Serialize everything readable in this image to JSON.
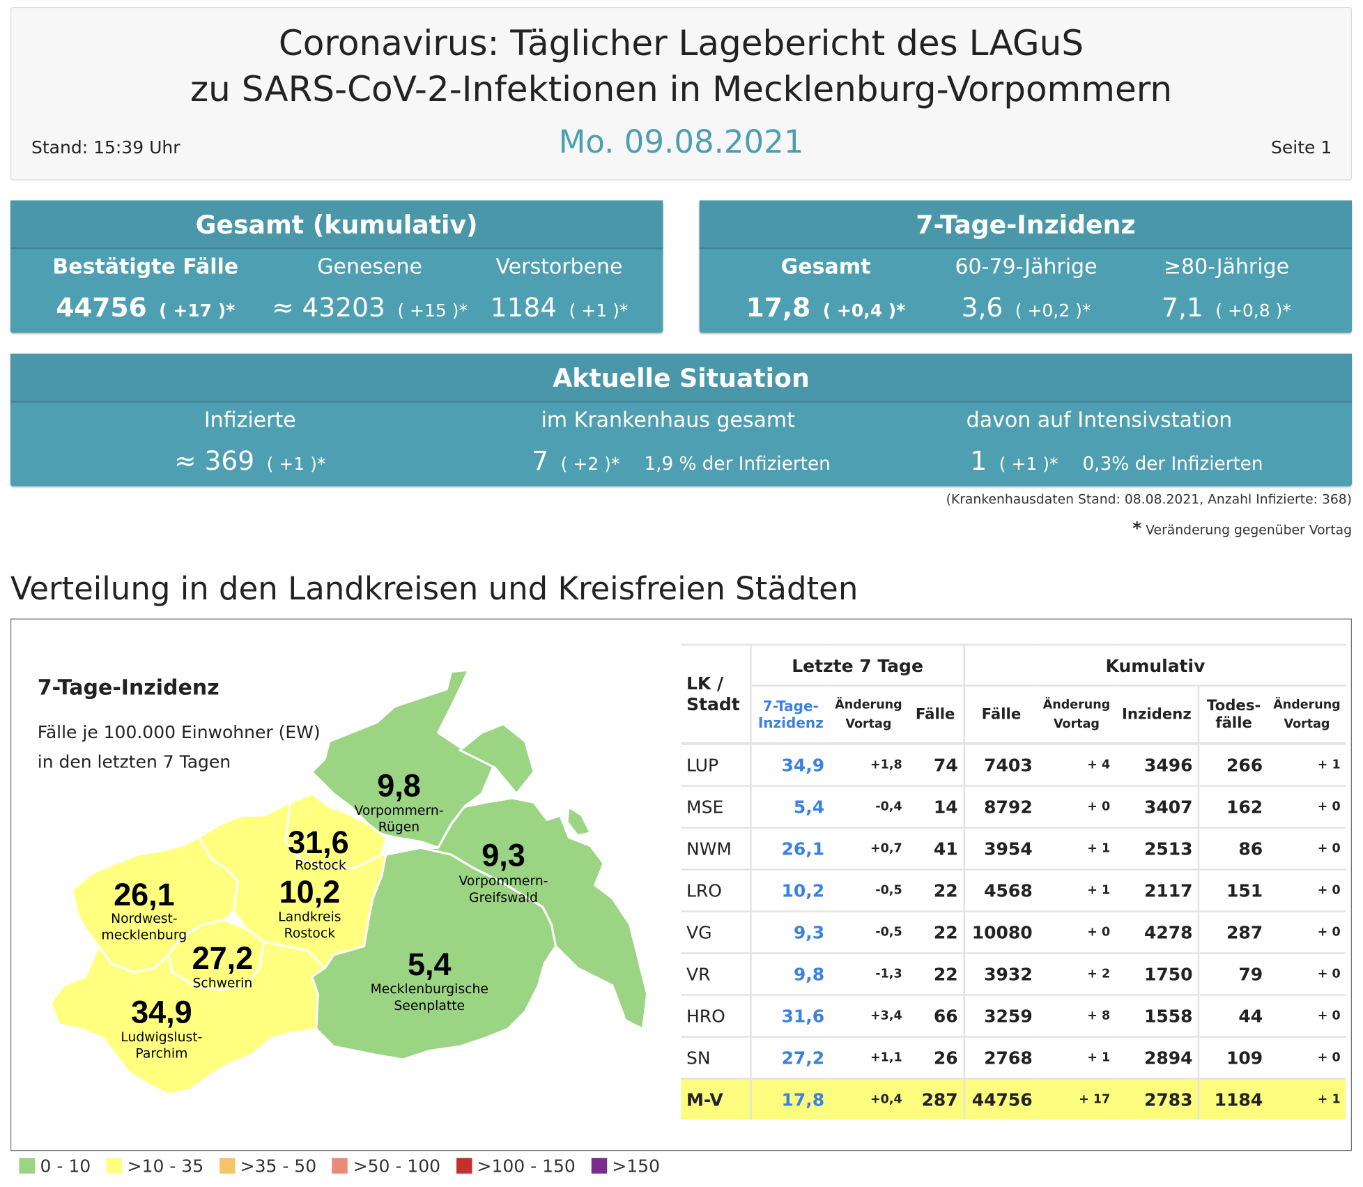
{
  "header": {
    "title_line1": "Coronavirus: Täglicher Lagebericht des LAGuS",
    "title_line2": "zu SARS-CoV-2-Infektionen in Mecklenburg-Vorpommern",
    "date": "Mo. 09.08.2021",
    "stand": "Stand: 15:39 Uhr",
    "page": "Seite 1"
  },
  "gesamt": {
    "title": "Gesamt (kumulativ)",
    "items": [
      {
        "label": "Bestätigte Fälle",
        "value": "44756",
        "delta": "( +17 )*"
      },
      {
        "label": "Genesene",
        "value": "≈ 43203",
        "delta": "( +15 )*"
      },
      {
        "label": "Verstorbene",
        "value": "1184",
        "delta": "( +1 )*"
      }
    ]
  },
  "inzidenz": {
    "title": "7-Tage-Inzidenz",
    "items": [
      {
        "label": "Gesamt",
        "value": "17,8",
        "delta": "( +0,4 )*"
      },
      {
        "label": "60-79-Jährige",
        "value": "3,6",
        "delta": "( +0,2 )*"
      },
      {
        "label": "≥80-Jährige",
        "value": "7,1",
        "delta": "( +0,8 )*"
      }
    ]
  },
  "aktuell": {
    "title": "Aktuelle Situation",
    "items": [
      {
        "label": "Infizierte",
        "value": "≈ 369",
        "delta": "( +1 )*",
        "extra": ""
      },
      {
        "label": "im Krankenhaus gesamt",
        "value": "7",
        "delta": "( +2 )*",
        "extra": "1,9 % der Infizierten"
      },
      {
        "label": "davon auf Intensivstation",
        "value": "1",
        "delta": "( +1 )*",
        "extra": "0,3% der Infizierten"
      }
    ]
  },
  "notes": {
    "hospital": "(Krankenhausdaten Stand: 08.08.2021, Anzahl Infizierte: 368)",
    "asterisk": "*",
    "change": "Veränderung gegenüber Vortag"
  },
  "section_title": "Verteilung in den Landkreisen und Kreisfreien Städten",
  "map": {
    "title": "7-Tage-Inzidenz",
    "subtitle1": "Fälle je 100.000 Einwohner (EW)",
    "subtitle2": "in den letzten 7 Tagen",
    "colors": {
      "green": "#9bd482",
      "yellow": "#ffff80"
    },
    "regions": [
      {
        "value": "9,8",
        "name1": "Vorpommern-",
        "name2": "Rügen"
      },
      {
        "value": "31,6",
        "name1": "Rostock",
        "name2": ""
      },
      {
        "value": "9,3",
        "name1": "Vorpommern-",
        "name2": "Greifswald"
      },
      {
        "value": "26,1",
        "name1": "Nordwest-",
        "name2": "mecklenburg"
      },
      {
        "value": "10,2",
        "name1": "Landkreis",
        "name2": "Rostock"
      },
      {
        "value": "27,2",
        "name1": "Schwerin",
        "name2": ""
      },
      {
        "value": "5,4",
        "name1": "Mecklenburgische",
        "name2": "Seenplatte"
      },
      {
        "value": "34,9",
        "name1": "Ludwigslust-",
        "name2": "Parchim"
      }
    ]
  },
  "legend": [
    {
      "label": "0 - 10",
      "color": "#9bd482"
    },
    {
      "label": ">10 - 35",
      "color": "#ffff80"
    },
    {
      "label": ">35 - 50",
      "color": "#f6c46b"
    },
    {
      "label": ">50 - 100",
      "color": "#ea8a7b"
    },
    {
      "label": ">100 - 150",
      "color": "#c4302b"
    },
    {
      "label": ">150",
      "color": "#7b2d8c"
    }
  ],
  "table": {
    "group_headers": {
      "last7": "Letzte 7 Tage",
      "cumulative": "Kumulativ"
    },
    "headers": {
      "lk1": "LK /",
      "lk2": "Stadt",
      "inz1": "7-Tage-",
      "inz2": "Inzidenz",
      "chg1": "Änderung",
      "chg2": "Vortag",
      "faelle7": "Fälle",
      "faelle": "Fälle",
      "kchg1": "Änderung",
      "kchg2": "Vortag",
      "inzidenz": "Inzidenz",
      "tod1": "Todes-",
      "tod2": "fälle",
      "tchg1": "Änderung",
      "tchg2": "Vortag"
    },
    "rows": [
      [
        "LUP",
        "34,9",
        "+1,8",
        "74",
        "7403",
        "+ 4",
        "3496",
        "266",
        "+ 1"
      ],
      [
        "MSE",
        "5,4",
        "-0,4",
        "14",
        "8792",
        "+ 0",
        "3407",
        "162",
        "+ 0"
      ],
      [
        "NWM",
        "26,1",
        "+0,7",
        "41",
        "3954",
        "+ 1",
        "2513",
        "86",
        "+ 0"
      ],
      [
        "LRO",
        "10,2",
        "-0,5",
        "22",
        "4568",
        "+ 1",
        "2117",
        "151",
        "+ 0"
      ],
      [
        "VG",
        "9,3",
        "-0,5",
        "22",
        "10080",
        "+ 0",
        "4278",
        "287",
        "+ 0"
      ],
      [
        "VR",
        "9,8",
        "-1,3",
        "22",
        "3932",
        "+ 2",
        "1750",
        "79",
        "+ 0"
      ],
      [
        "HRO",
        "31,6",
        "+3,4",
        "66",
        "3259",
        "+ 8",
        "1558",
        "44",
        "+ 0"
      ],
      [
        "SN",
        "27,2",
        "+1,1",
        "26",
        "2768",
        "+ 1",
        "2894",
        "109",
        "+ 0"
      ]
    ],
    "total": [
      "M-V",
      "17,8",
      "+0,4",
      "287",
      "44756",
      "+ 17",
      "2783",
      "1184",
      "+ 1"
    ]
  }
}
